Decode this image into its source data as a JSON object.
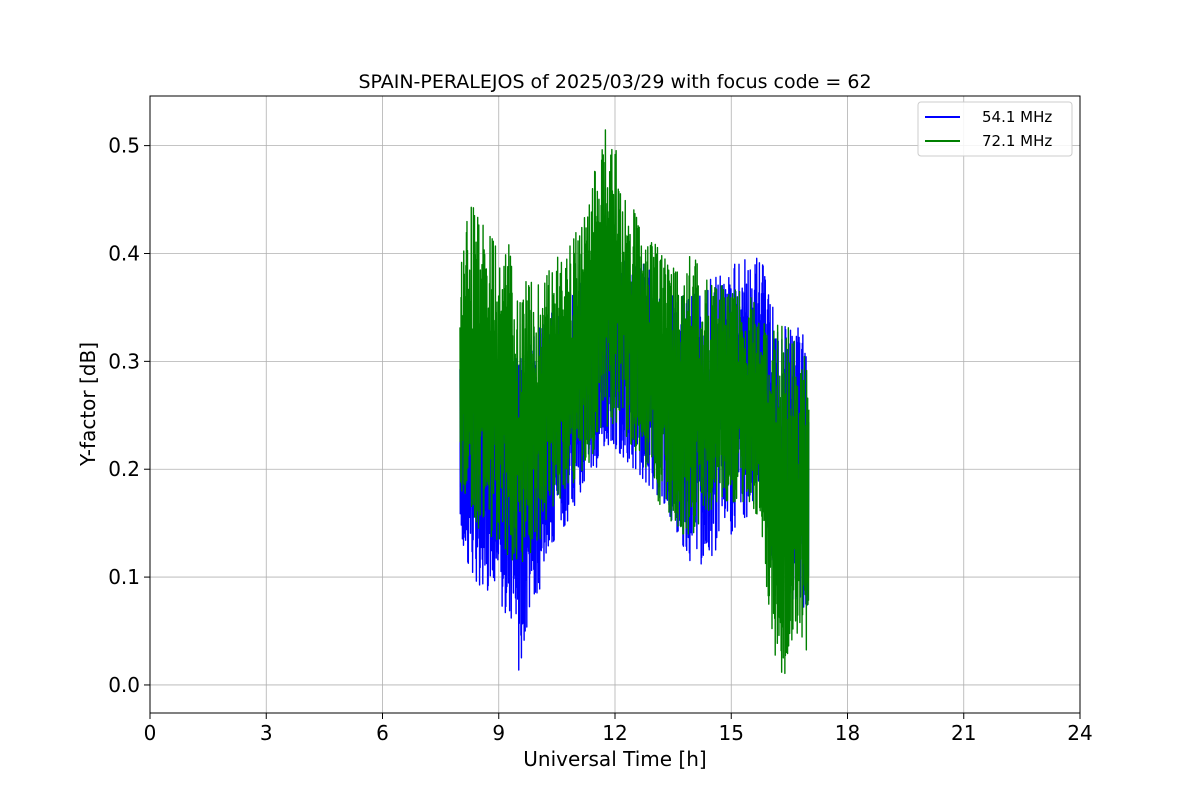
{
  "chart_data": {
    "type": "line",
    "title": "SPAIN-PERALEJOS of 2025/03/29 with focus code = 62",
    "xlabel": "Universal Time [h]",
    "ylabel": "Y-factor [dB]",
    "xlim": [
      0,
      24
    ],
    "ylim": [
      -0.026,
      0.546
    ],
    "xticks": [
      0,
      3,
      6,
      9,
      12,
      15,
      18,
      21,
      24
    ],
    "yticks": [
      0.0,
      0.1,
      0.2,
      0.3,
      0.4,
      0.5
    ],
    "ytick_labels": [
      "0.0",
      "0.1",
      "0.2",
      "0.3",
      "0.4",
      "0.5"
    ],
    "grid": true,
    "legend_position": "top-right",
    "series": [
      {
        "name": "54.1 MHz",
        "color": "#0000ff",
        "x": [
          8.0,
          8.25,
          8.5,
          8.75,
          9.0,
          9.25,
          9.5,
          9.75,
          10.0,
          10.25,
          10.5,
          10.75,
          11.0,
          11.25,
          11.5,
          11.75,
          12.0,
          12.25,
          12.5,
          12.75,
          13.0,
          13.25,
          13.5,
          13.75,
          14.0,
          14.25,
          14.5,
          14.75,
          15.0,
          15.25,
          15.5,
          15.75,
          16.0,
          16.25,
          16.5,
          16.75,
          17.0
        ],
        "y_low": [
          0.13,
          0.11,
          0.09,
          0.08,
          0.08,
          0.06,
          0.0,
          0.06,
          0.08,
          0.12,
          0.14,
          0.15,
          0.17,
          0.19,
          0.2,
          0.22,
          0.22,
          0.21,
          0.2,
          0.19,
          0.18,
          0.17,
          0.15,
          0.13,
          0.11,
          0.11,
          0.12,
          0.13,
          0.14,
          0.15,
          0.16,
          0.17,
          0.12,
          0.1,
          0.08,
          0.07,
          0.07
        ],
        "y_high": [
          0.32,
          0.34,
          0.33,
          0.32,
          0.32,
          0.31,
          0.3,
          0.31,
          0.33,
          0.34,
          0.35,
          0.36,
          0.37,
          0.38,
          0.39,
          0.4,
          0.41,
          0.4,
          0.39,
          0.39,
          0.38,
          0.37,
          0.36,
          0.36,
          0.36,
          0.37,
          0.38,
          0.38,
          0.39,
          0.39,
          0.4,
          0.4,
          0.36,
          0.34,
          0.33,
          0.34,
          0.31
        ]
      },
      {
        "name": "72.1 MHz",
        "color": "#008000",
        "x": [
          8.0,
          8.25,
          8.5,
          8.75,
          9.0,
          9.25,
          9.5,
          9.75,
          10.0,
          10.25,
          10.5,
          10.75,
          11.0,
          11.25,
          11.5,
          11.75,
          12.0,
          12.25,
          12.5,
          12.75,
          13.0,
          13.25,
          13.5,
          13.75,
          14.0,
          14.25,
          14.5,
          14.75,
          15.0,
          15.25,
          15.5,
          15.75,
          16.0,
          16.25,
          16.5,
          16.75,
          17.0
        ],
        "y_low": [
          0.18,
          0.16,
          0.14,
          0.14,
          0.13,
          0.12,
          0.11,
          0.12,
          0.13,
          0.15,
          0.17,
          0.18,
          0.19,
          0.2,
          0.22,
          0.24,
          0.24,
          0.23,
          0.22,
          0.2,
          0.18,
          0.16,
          0.15,
          0.14,
          0.14,
          0.15,
          0.16,
          0.16,
          0.17,
          0.17,
          0.17,
          0.15,
          0.06,
          0.0,
          0.02,
          0.04,
          0.03
        ],
        "y_high": [
          0.38,
          0.45,
          0.43,
          0.42,
          0.4,
          0.41,
          0.36,
          0.38,
          0.37,
          0.38,
          0.4,
          0.4,
          0.42,
          0.44,
          0.48,
          0.52,
          0.5,
          0.46,
          0.44,
          0.41,
          0.41,
          0.4,
          0.4,
          0.39,
          0.4,
          0.38,
          0.37,
          0.37,
          0.37,
          0.37,
          0.36,
          0.35,
          0.32,
          0.34,
          0.33,
          0.31,
          0.3
        ]
      }
    ]
  }
}
